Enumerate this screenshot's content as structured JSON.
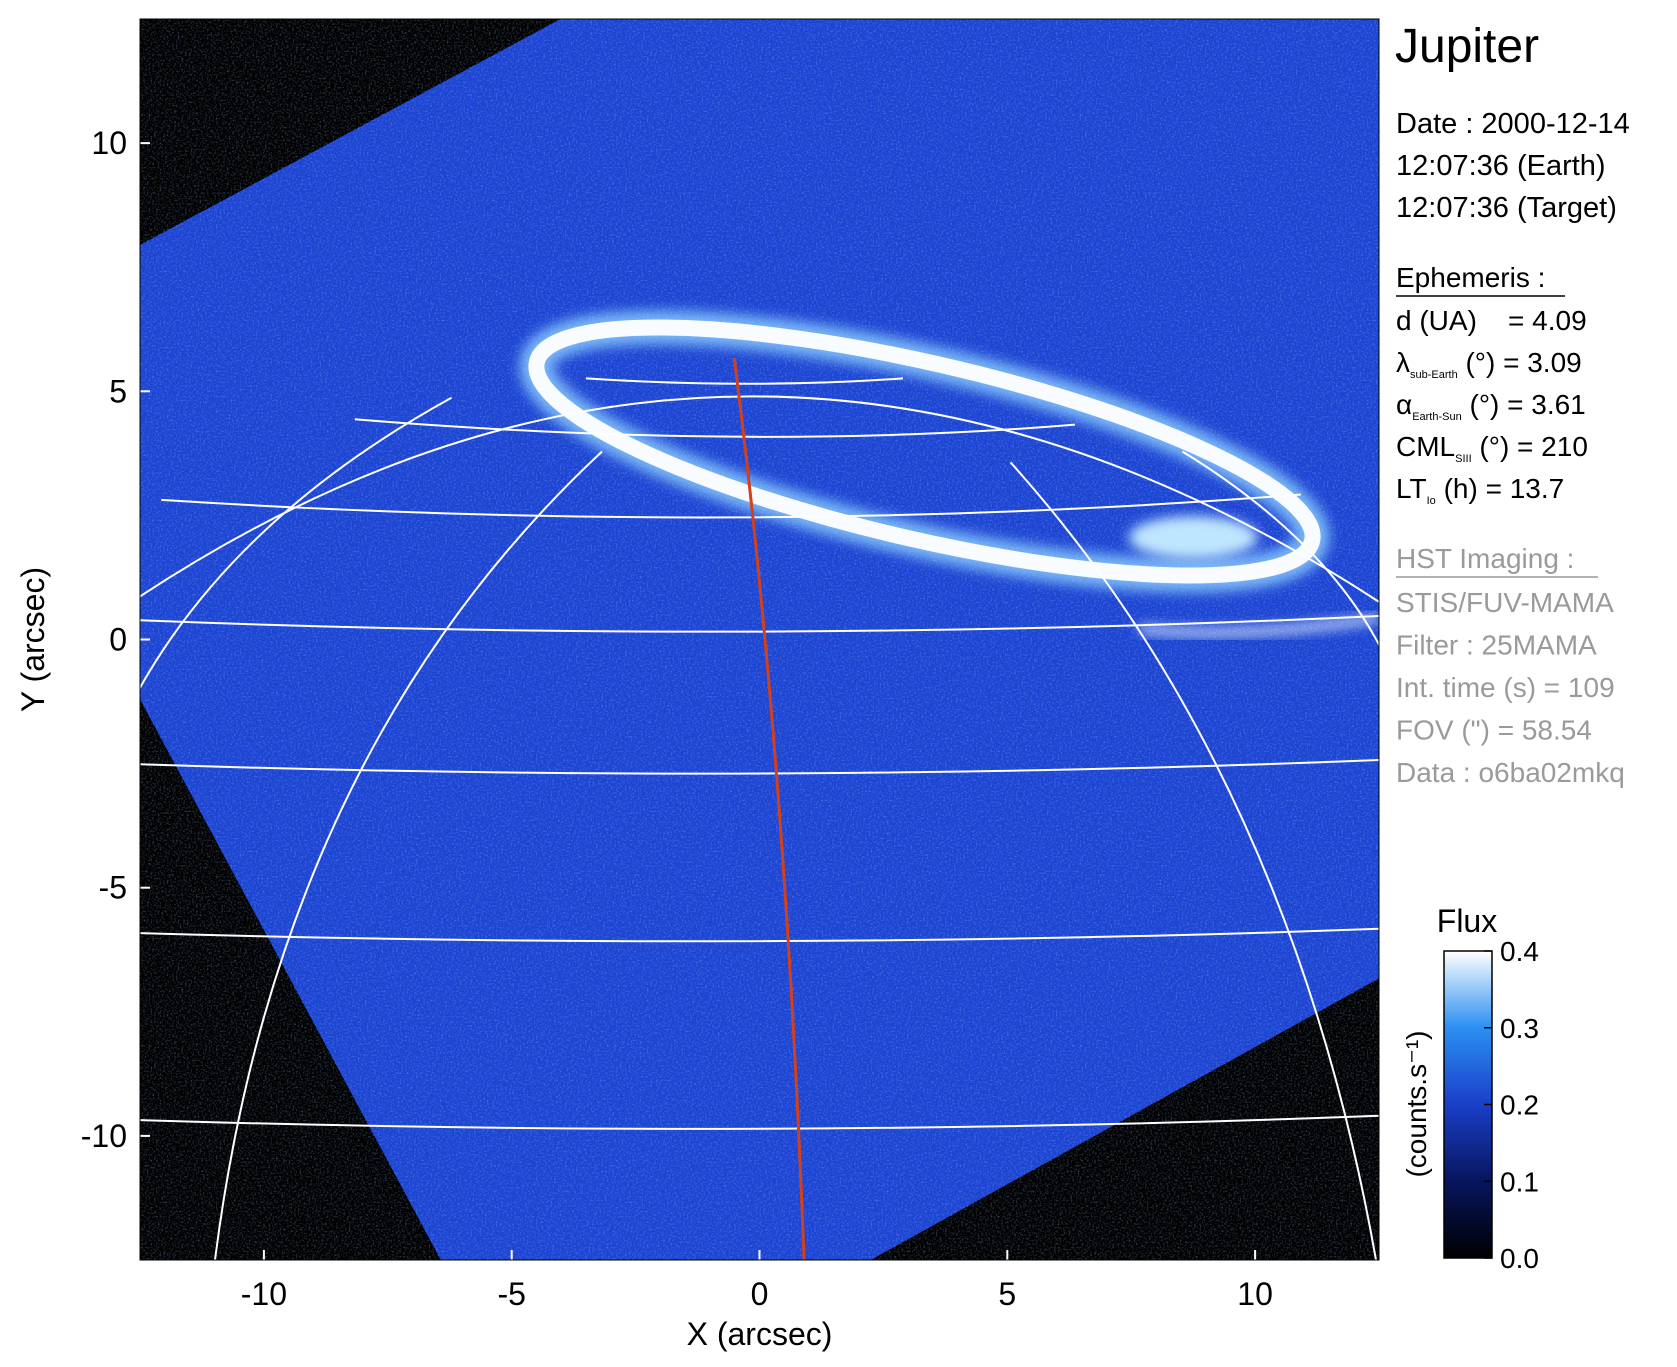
{
  "chart_data": {
    "type": "image",
    "xlabel": "X (arcsec)",
    "ylabel": "Y (arcsec)",
    "xlim": [
      -12.5,
      12.5
    ],
    "ylim": [
      -12.5,
      12.5
    ],
    "xticks": [
      -10,
      -5,
      0,
      5,
      10
    ],
    "yticks": [
      -10,
      -5,
      0,
      5,
      10
    ],
    "colorbar": {
      "label": "Flux",
      "unit": "(counts.s⁻¹)",
      "lim": [
        0,
        0.4
      ],
      "ticks": [
        {
          "value": 0,
          "label": "0.0"
        },
        0.1,
        0.2,
        0.3,
        0.4
      ],
      "colormap": [
        "#000000",
        "#07155e",
        "#1a3fc8",
        "#2b8ff2",
        "#ffffff"
      ]
    }
  },
  "info": {
    "title": "Jupiter",
    "date": [
      "Date : 2000-12-14",
      "12:07:36 (Earth)",
      "12:07:36 (Target)"
    ],
    "ephemeris": {
      "heading": "Ephemeris :",
      "rows": [
        {
          "text": "d (UA)    = 4.09"
        },
        {
          "symbol": "λ",
          "sub": "sub-Earth",
          "text": " (°) = 3.09"
        },
        {
          "symbol": "α",
          "sub": "Earth-Sun",
          "text": " (°) = 3.61"
        },
        {
          "symbol": "CML",
          "sub": "SIII",
          "text": " (°) = 210"
        },
        {
          "symbol": "LT",
          "sub": "Io",
          "text": " (h) = 13.7"
        }
      ]
    },
    "imaging": {
      "heading": "HST Imaging :",
      "rows": [
        "STIS/FUV-MAMA",
        "Filter : 25MAMA",
        "Int. time (s) = 109",
        "FOV (\") = 58.54",
        "Data : o6ba02mkq"
      ]
    }
  }
}
